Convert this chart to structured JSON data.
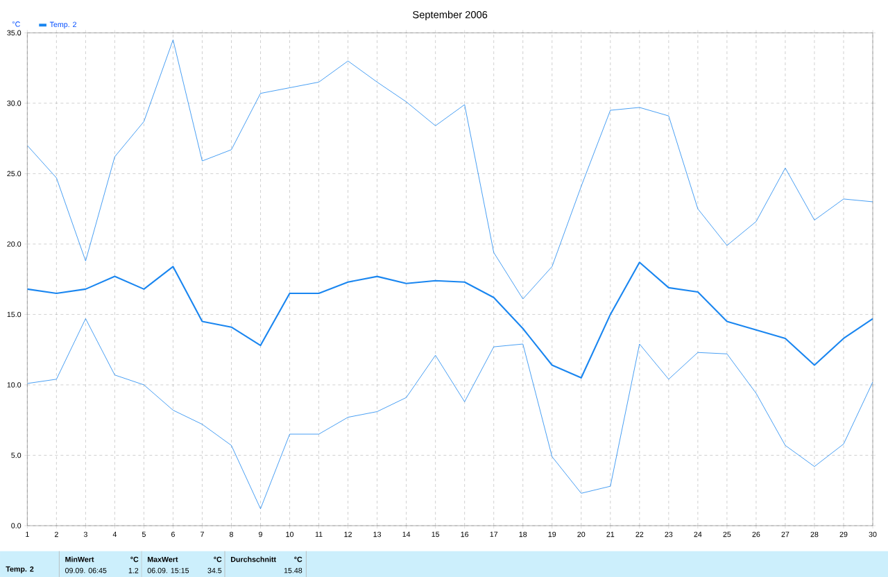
{
  "chart_data": {
    "type": "line",
    "title": "September 2006",
    "ylabel": "°C",
    "x": [
      1,
      2,
      3,
      4,
      5,
      6,
      7,
      8,
      9,
      10,
      11,
      12,
      13,
      14,
      15,
      16,
      17,
      18,
      19,
      20,
      21,
      22,
      23,
      24,
      25,
      26,
      27,
      28,
      29,
      30
    ],
    "series": [
      {
        "color": "#1a86f0",
        "values": [
          27.0,
          24.7,
          18.8,
          26.2,
          28.7,
          34.5,
          25.9,
          26.7,
          30.7,
          31.1,
          31.5,
          33.0,
          31.5,
          30.1,
          28.4,
          29.9,
          19.4,
          16.1,
          18.4,
          24.1,
          29.5,
          29.7,
          29.1,
          22.5,
          19.9,
          21.6,
          25.4,
          21.7,
          23.2,
          23.0
        ]
      },
      {
        "name": "Temp. 2",
        "color": "#1a86f0",
        "values": [
          16.8,
          16.5,
          16.8,
          17.7,
          16.8,
          18.4,
          14.5,
          14.1,
          12.8,
          16.5,
          16.5,
          17.3,
          17.7,
          17.2,
          17.4,
          17.3,
          16.2,
          14.0,
          11.4,
          10.5,
          15.0,
          18.7,
          16.9,
          16.6,
          14.5,
          13.9,
          13.3,
          11.4,
          13.3,
          14.7
        ]
      },
      {
        "color": "#1a86f0",
        "values": [
          10.1,
          10.4,
          14.7,
          10.7,
          10.0,
          8.2,
          7.2,
          5.7,
          1.2,
          6.5,
          6.5,
          7.7,
          8.1,
          9.1,
          12.1,
          8.8,
          12.7,
          12.9,
          4.9,
          2.3,
          2.8,
          12.9,
          10.4,
          12.3,
          12.2,
          9.4,
          5.7,
          4.2,
          5.8,
          10.2
        ]
      }
    ],
    "xlim": [
      1,
      30
    ],
    "xticks": [
      1,
      2,
      3,
      4,
      5,
      6,
      7,
      8,
      9,
      10,
      11,
      12,
      13,
      14,
      15,
      16,
      17,
      18,
      19,
      20,
      21,
      22,
      23,
      24,
      25,
      26,
      27,
      28,
      29,
      30
    ],
    "ylim": [
      0,
      35
    ],
    "yticks": [
      {
        "value": 0,
        "label": "0.0"
      },
      {
        "value": 5,
        "label": "5.0"
      },
      {
        "value": 10,
        "label": "10.0"
      },
      {
        "value": 15,
        "label": "15.0"
      },
      {
        "value": 20,
        "label": "20.0"
      },
      {
        "value": 25,
        "label": "25.0"
      },
      {
        "value": 30,
        "label": "30.0"
      },
      {
        "value": 35,
        "label": "35.0"
      }
    ],
    "grid": true,
    "legend": "top left",
    "marker": "none",
    "line_style": "solid",
    "annotations": [
      "Temp. 2",
      "MinWert",
      "°C",
      "09.09.  06:45",
      "1.2",
      "MaxWert",
      "°C",
      "06.09.  15:15",
      "34.5",
      "Durchschnitt",
      "°C",
      "15.48"
    ]
  }
}
